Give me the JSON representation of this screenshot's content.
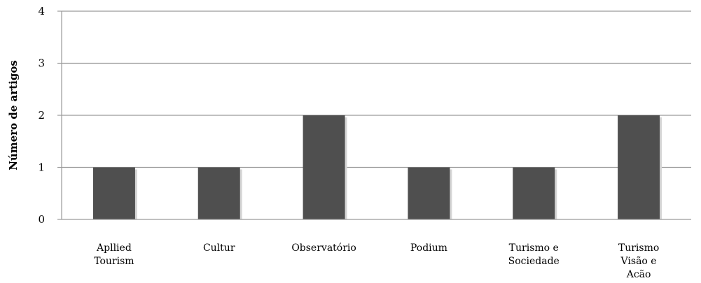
{
  "chart_data": {
    "type": "bar",
    "categories": [
      [
        "Apllied",
        "Tourism"
      ],
      [
        "Cultur"
      ],
      [
        "Observatório"
      ],
      [
        "Podium"
      ],
      [
        "Turismo e",
        "Sociedade"
      ],
      [
        "Turismo",
        "Visão e",
        "Acão"
      ]
    ],
    "values": [
      1,
      1,
      2,
      1,
      1,
      2
    ],
    "title": "",
    "xlabel": "",
    "ylabel": "Número de artigos",
    "ylim": [
      0,
      4
    ],
    "yticks": [
      0,
      1,
      2,
      3,
      4
    ],
    "grid": true,
    "legend": "none",
    "colors": {
      "bar": "#4f4f4f",
      "grid": "#9a9a9a",
      "axis": "#9a9a9a"
    }
  }
}
